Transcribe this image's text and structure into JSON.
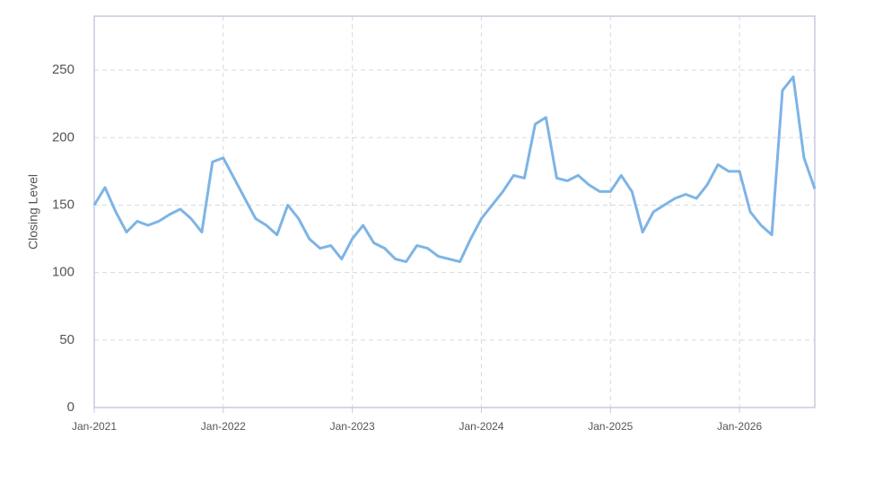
{
  "chart_data": {
    "type": "line",
    "y_label": "Closing Level",
    "x": [
      "2021-01",
      "2021-02",
      "2021-03",
      "2021-04",
      "2021-05",
      "2021-06",
      "2021-07",
      "2021-08",
      "2021-09",
      "2021-10",
      "2021-11",
      "2021-12",
      "2022-01",
      "2022-02",
      "2022-03",
      "2022-04",
      "2022-05",
      "2022-06",
      "2022-07",
      "2022-08",
      "2022-09",
      "2022-10",
      "2022-11",
      "2022-12",
      "2023-01",
      "2023-02",
      "2023-03",
      "2023-04",
      "2023-05",
      "2023-06",
      "2023-07",
      "2023-08",
      "2023-09",
      "2023-10",
      "2023-11",
      "2023-12",
      "2024-01",
      "2024-02",
      "2024-03",
      "2024-04",
      "2024-05",
      "2024-06",
      "2024-07",
      "2024-08",
      "2024-09",
      "2024-10",
      "2024-11",
      "2024-12",
      "2025-01",
      "2025-02",
      "2025-03",
      "2025-04",
      "2025-05",
      "2025-06",
      "2025-07",
      "2025-08",
      "2025-09",
      "2025-10",
      "2025-11",
      "2025-12",
      "2026-01",
      "2026-02",
      "2026-03",
      "2026-04",
      "2026-05",
      "2026-06",
      "2026-07",
      "2026-08"
    ],
    "series": [
      {
        "name": "Closing Level",
        "color": "#7db4e6",
        "values": [
          150,
          163,
          145,
          130,
          138,
          135,
          138,
          143,
          147,
          140,
          130,
          182,
          185,
          170,
          155,
          140,
          135,
          128,
          150,
          140,
          125,
          118,
          120,
          110,
          125,
          135,
          122,
          118,
          110,
          108,
          120,
          118,
          112,
          110,
          108,
          125,
          140,
          150,
          160,
          172,
          170,
          210,
          215,
          170,
          168,
          172,
          165,
          160,
          160,
          172,
          160,
          130,
          145,
          150,
          155,
          158,
          155,
          165,
          180,
          175,
          175,
          145,
          135,
          128,
          235,
          245,
          185,
          162
        ]
      }
    ],
    "xlim": [
      "2021-01",
      "2026-08"
    ],
    "xticks": [
      {
        "value": "2021-01",
        "label": "Jan-2021"
      },
      {
        "value": "2022-01",
        "label": "Jan-2022"
      },
      {
        "value": "2023-01",
        "label": "Jan-2023"
      },
      {
        "value": "2024-01",
        "label": "Jan-2024"
      },
      {
        "value": "2025-01",
        "label": "Jan-2025"
      },
      {
        "value": "2026-01",
        "label": "Jan-2026"
      }
    ],
    "ylim": [
      0,
      290
    ],
    "yticks": [
      0,
      50,
      100,
      150,
      200,
      250
    ],
    "grid": true
  }
}
